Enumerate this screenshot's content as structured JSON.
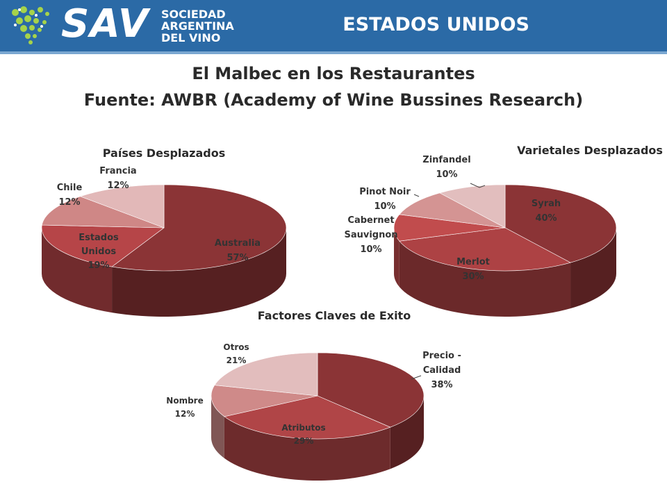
{
  "header": {
    "brand": "SAV",
    "brand_sub_1": "SOCIEDAD",
    "brand_sub_2": "ARGENTINA",
    "brand_sub_3": "DEL VINO",
    "region": "ESTADOS UNIDOS",
    "colors": {
      "bar": "#2b6aa6",
      "text": "#ffffff",
      "logo_dots": "#a6d34a"
    }
  },
  "page": {
    "title_1": "El Malbec en los Restaurantes",
    "title_2": "Fuente: AWBR (Academy of Wine Bussines Research)"
  },
  "chart_data": [
    {
      "type": "pie",
      "title": "Países Desplazados",
      "slices": [
        {
          "label": "Australia",
          "value": 57,
          "display": "57%",
          "color": "#8b3436"
        },
        {
          "label": "Estados Unidos",
          "value": 19,
          "display": "19%",
          "color": "#b64548"
        },
        {
          "label": "Chile",
          "value": 12,
          "display": "12%",
          "color": "#cf8786"
        },
        {
          "label": "Francia",
          "value": 12,
          "display": "12%",
          "color": "#e2b8b8"
        }
      ]
    },
    {
      "type": "pie",
      "title": "Varietales Desplazados",
      "slices": [
        {
          "label": "Syrah",
          "value": 40,
          "display": "40%",
          "color": "#8b3436"
        },
        {
          "label": "Merlot",
          "value": 30,
          "display": "30%",
          "color": "#ad4244"
        },
        {
          "label": "Cabernet Sauvignon",
          "value": 10,
          "display": "10%",
          "color": "#c14c4d"
        },
        {
          "label": "Pinot Noir",
          "value": 10,
          "display": "10%",
          "color": "#d49493"
        },
        {
          "label": "Zinfandel",
          "value": 10,
          "display": "10%",
          "color": "#e2bebe"
        }
      ]
    },
    {
      "type": "pie",
      "title": "Factores Claves de Exito",
      "slices": [
        {
          "label": "Precio - Calidad",
          "value": 38,
          "display": "38%",
          "color": "#8b3436"
        },
        {
          "label": "Atributos",
          "value": 29,
          "display": "29%",
          "color": "#b04547"
        },
        {
          "label": "Nombre",
          "value": 12,
          "display": "12%",
          "color": "#cf8a89"
        },
        {
          "label": "Otros",
          "value": 21,
          "display": "21%",
          "color": "#e2bdbd"
        }
      ]
    }
  ]
}
